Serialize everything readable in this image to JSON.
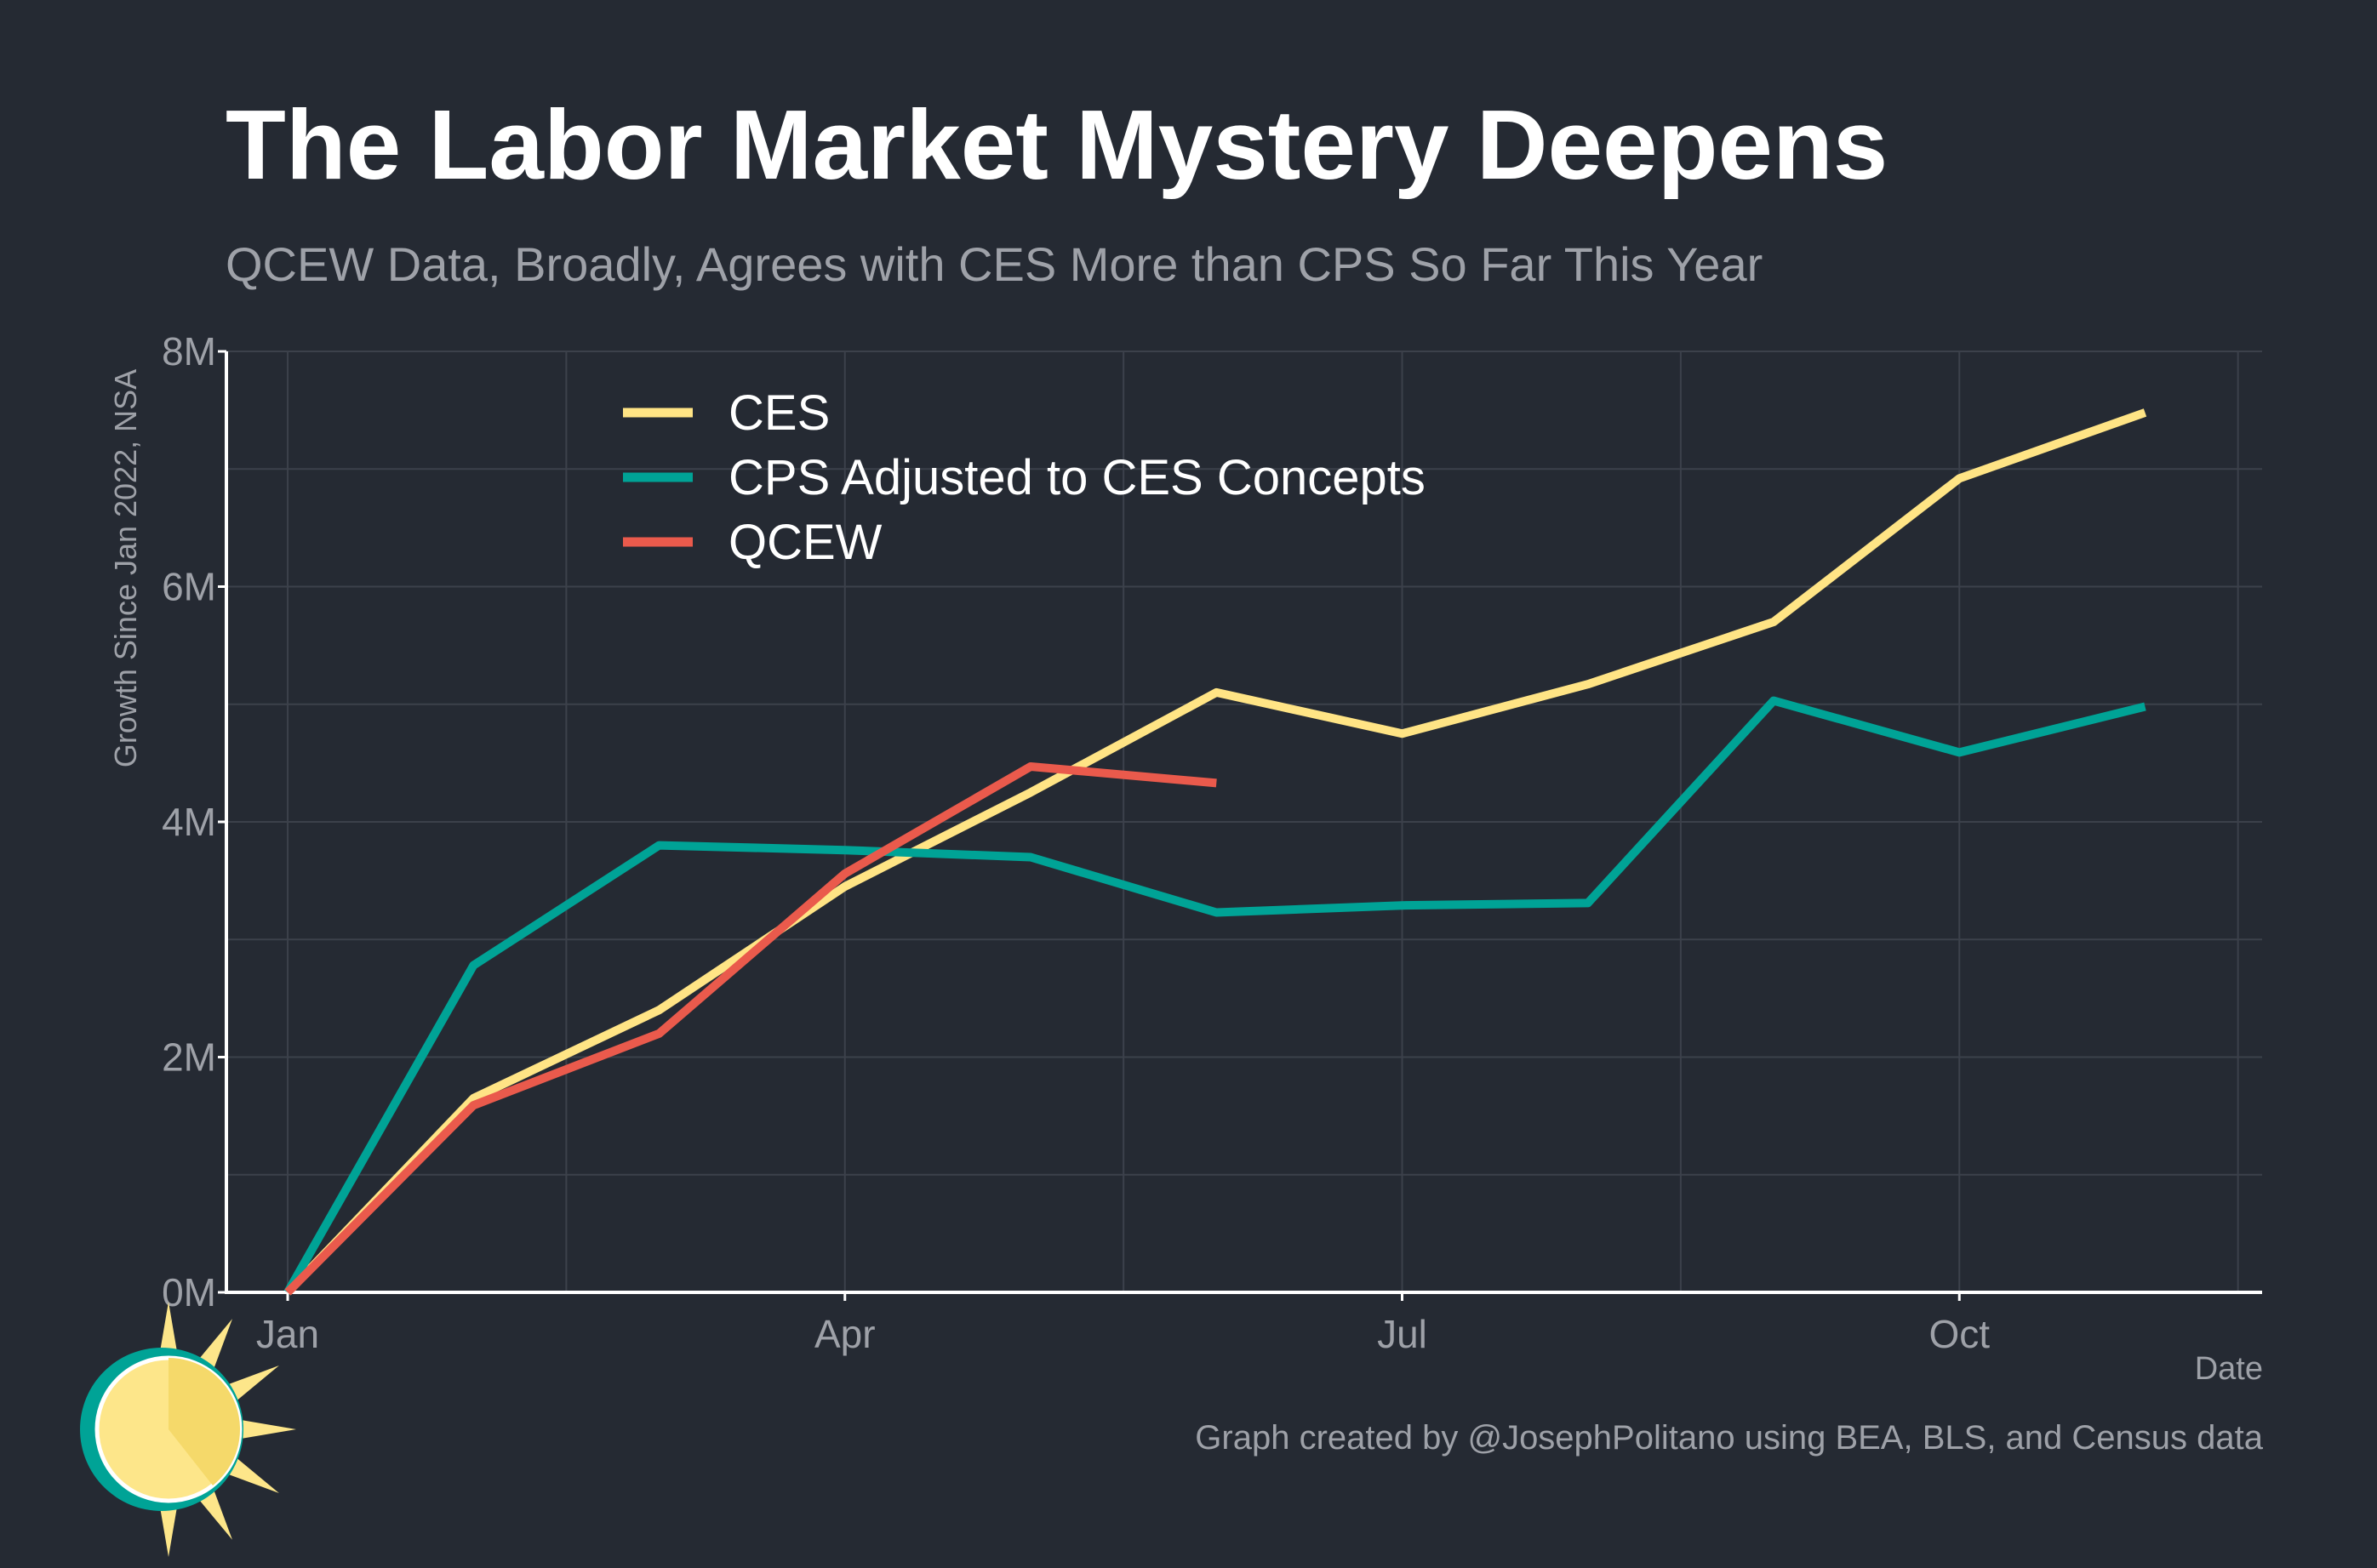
{
  "title": "The Labor Market Mystery Deepens",
  "subtitle": "QCEW Data, Broadly, Agrees with CES More than CPS So Far This Year",
  "caption": "Graph created by @JosephPolitano using BEA, BLS, and Census data",
  "colors": {
    "background": "#252a33",
    "CES": "#ffe485",
    "CPS": "#00a396",
    "QCEW": "#ea5a4c",
    "logo_ring": "#00a396",
    "logo_sun": "#fde68a"
  },
  "chart_data": {
    "type": "line",
    "title": "The Labor Market Mystery Deepens",
    "subtitle": "QCEW Data, Broadly, Agrees with CES More than CPS So Far This Year",
    "xlabel": "Date",
    "ylabel": "Growth Since Jan 2022, NSA",
    "x": [
      "2022-01",
      "2022-02",
      "2022-03",
      "2022-04",
      "2022-05",
      "2022-06",
      "2022-07",
      "2022-08",
      "2022-09",
      "2022-10",
      "2022-11"
    ],
    "x_ticks": [
      {
        "label": "Jan",
        "x": "2022-01"
      },
      {
        "label": "Apr",
        "x": "2022-04"
      },
      {
        "label": "Jul",
        "x": "2022-07"
      },
      {
        "label": "Oct",
        "x": "2022-10"
      }
    ],
    "xlim": [
      "2022-01",
      "2022-12"
    ],
    "ylim": [
      0,
      8000000
    ],
    "y_ticks": [
      {
        "label": "0M",
        "value": 0
      },
      {
        "label": "2M",
        "value": 2000000
      },
      {
        "label": "4M",
        "value": 4000000
      },
      {
        "label": "6M",
        "value": 6000000
      },
      {
        "label": "8M",
        "value": 8000000
      }
    ],
    "grid": true,
    "legend_position": "top-left",
    "series": [
      {
        "name": "CES",
        "values": [
          0,
          1650000,
          2400000,
          3450000,
          4250000,
          5100000,
          4750000,
          5170000,
          5700000,
          6920000,
          7480000
        ]
      },
      {
        "name": "CPS Adjusted to CES Concepts",
        "values": [
          0,
          2780000,
          3800000,
          3760000,
          3700000,
          3230000,
          3290000,
          3310000,
          5030000,
          4590000,
          4980000
        ]
      },
      {
        "name": "QCEW",
        "values": [
          0,
          1590000,
          2200000,
          3560000,
          4470000,
          4330000,
          null,
          null,
          null,
          null,
          null
        ]
      }
    ]
  }
}
